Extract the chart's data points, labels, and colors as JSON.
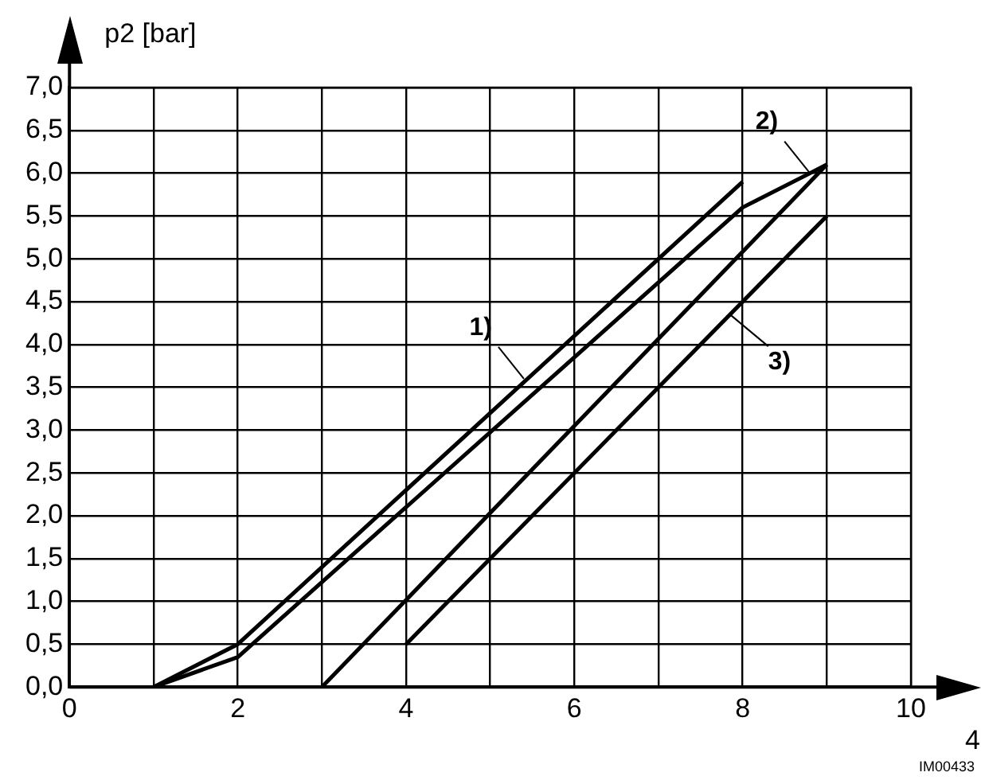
{
  "chart_data": {
    "type": "line",
    "ylabel": "p2 [bar]",
    "xlabel": "4",
    "series": [
      {
        "color": "#000000",
        "x": [
          1,
          2,
          8
        ],
        "values": [
          0,
          0.5,
          5.9
        ]
      },
      {
        "color": "#000000",
        "x": [
          1,
          2,
          8,
          9
        ],
        "values": [
          0,
          0.35,
          5.6,
          6.1
        ]
      },
      {
        "color": "#000000",
        "x": [
          3,
          9
        ],
        "values": [
          0,
          6.1
        ]
      },
      {
        "color": "#000000",
        "x": [
          4,
          9
        ],
        "values": [
          0.5,
          5.5
        ]
      }
    ],
    "xlim": [
      0,
      10
    ],
    "xticks": [
      0,
      {
        "value": 1,
        "label": null
      },
      2,
      {
        "value": 3,
        "label": null
      },
      4,
      {
        "value": 5,
        "label": null
      },
      6,
      {
        "value": 7,
        "label": null
      },
      8,
      {
        "value": 9,
        "label": null
      },
      10
    ],
    "ylim": [
      0,
      7
    ],
    "yticks": [
      {
        "value": 0,
        "label": "0,0"
      },
      {
        "value": 0.5,
        "label": "0,5"
      },
      {
        "value": 1,
        "label": "1,0"
      },
      {
        "value": 1.5,
        "label": "1,5"
      },
      {
        "value": 2,
        "label": "2,0"
      },
      {
        "value": 2.5,
        "label": "2,5"
      },
      {
        "value": 3,
        "label": "3,0"
      },
      {
        "value": 3.5,
        "label": "3,5"
      },
      {
        "value": 4,
        "label": "4,0"
      },
      {
        "value": 4.5,
        "label": "4,5"
      },
      {
        "value": 5,
        "label": "5,0"
      },
      {
        "value": 5.5,
        "label": "5,5"
      },
      {
        "value": 6,
        "label": "6,0"
      },
      {
        "value": 6.5,
        "label": "6,5"
      },
      {
        "value": 7,
        "label": "7,0"
      }
    ],
    "grid": true,
    "legend": false,
    "marker": "none",
    "line_style": "solid",
    "annotations": [
      {
        "text": "1)",
        "x": 5.4,
        "y": 3.6
      },
      {
        "text": "2)",
        "x": 8.8,
        "y": 6.0
      },
      {
        "text": "3)",
        "x": 7.85,
        "y": 4.35
      },
      "IM00433"
    ]
  }
}
